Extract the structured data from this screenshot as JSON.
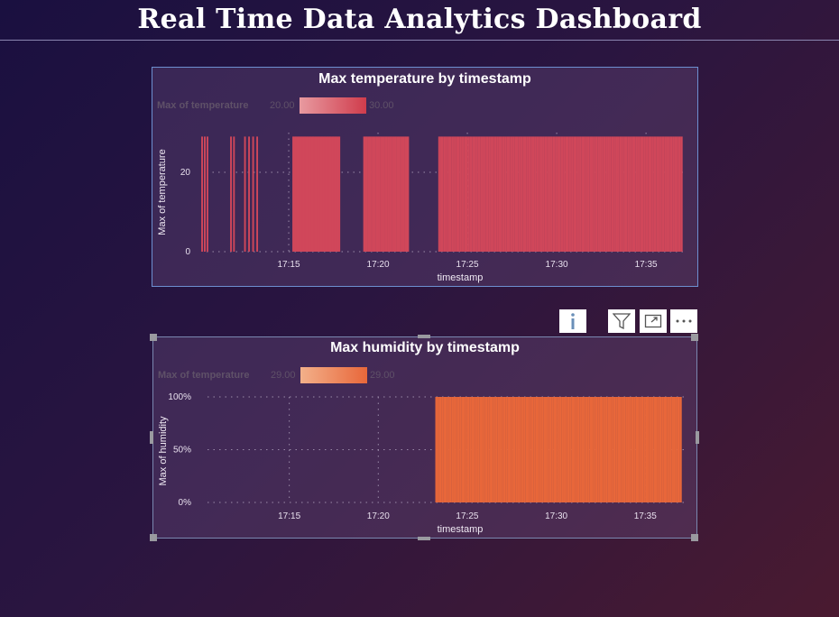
{
  "page": {
    "title": "Real Time Data Analytics Dashboard"
  },
  "colors": {
    "temp_bar": "#d0475a",
    "humidity_bar": "#e8673a",
    "temp_grad_lo": "#e89aa0",
    "temp_grad_hi": "#d03c4c",
    "hum_grad_lo": "#f3b08a",
    "hum_grad_hi": "#e8673a"
  },
  "visual_header": {
    "icons": [
      "info-icon",
      "filter-icon",
      "focus-mode-icon",
      "more-options-icon"
    ]
  },
  "chart_data": [
    {
      "type": "bar",
      "title": "Max temperature by timestamp",
      "legend": {
        "title": "Max of temperature",
        "min_label": "20.00",
        "max_label": "30.00"
      },
      "xlabel": "timestamp",
      "ylabel": "Max of temperature",
      "x_ticks": [
        "17:15",
        "17:20",
        "17:25",
        "17:30",
        "17:35"
      ],
      "y_ticks": [
        "0",
        "20"
      ],
      "ylim": [
        0,
        30
      ],
      "bar_value": 29,
      "bar_segments": [
        {
          "start": "17:10:09",
          "end": "17:10:27",
          "count": 3
        },
        {
          "start": "17:11:46",
          "end": "17:11:56",
          "count": 2
        },
        {
          "start": "17:12:33",
          "end": "17:13:14",
          "count": 4
        },
        {
          "start": "17:15:15",
          "end": "17:17:50",
          "count": 36
        },
        {
          "start": "17:19:13",
          "end": "17:21:41",
          "count": 30
        },
        {
          "start": "17:23:25",
          "end": "17:37:00",
          "count": 150
        }
      ]
    },
    {
      "type": "bar",
      "title": "Max humidity by timestamp",
      "legend": {
        "title": "Max of temperature",
        "min_label": "29.00",
        "max_label": "29.00"
      },
      "xlabel": "timestamp",
      "ylabel": "Max of humidity",
      "x_ticks": [
        "17:15",
        "17:20",
        "17:25",
        "17:30",
        "17:35"
      ],
      "y_ticks": [
        "0%",
        "50%",
        "100%"
      ],
      "ylim": [
        0,
        1
      ],
      "bar_value": 1,
      "bar_segments": [
        {
          "start": "17:23:15",
          "end": "17:37:00",
          "count": 150
        }
      ]
    }
  ]
}
